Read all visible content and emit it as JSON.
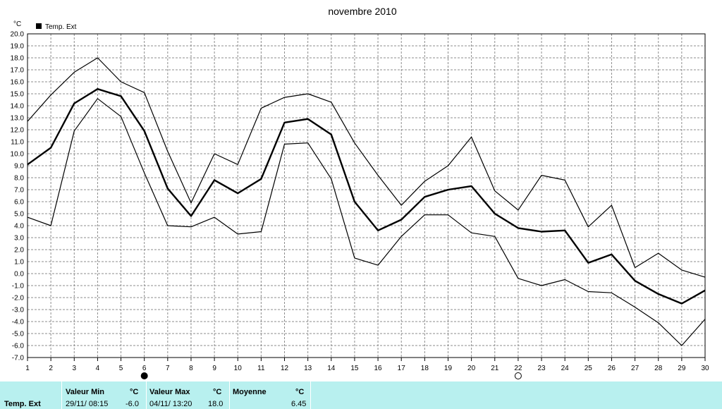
{
  "chart_data": {
    "type": "line",
    "title": "novembre 2010",
    "unit_label": "°C",
    "legend": "Temp. Ext",
    "x": [
      1,
      2,
      3,
      4,
      5,
      6,
      7,
      8,
      9,
      10,
      11,
      12,
      13,
      14,
      15,
      16,
      17,
      18,
      19,
      20,
      21,
      22,
      23,
      24,
      25,
      26,
      27,
      28,
      29,
      30
    ],
    "ylim": [
      -7.0,
      20.0
    ],
    "yticks": [
      "20.0",
      "19.0",
      "18.0",
      "17.0",
      "16.0",
      "15.0",
      "14.0",
      "13.0",
      "12.0",
      "11.0",
      "10.0",
      "9.0",
      "8.0",
      "7.0",
      "6.0",
      "5.0",
      "4.0",
      "3.0",
      "2.0",
      "1.0",
      "0.0",
      "-1.0",
      "-2.0",
      "-3.0",
      "-4.0",
      "-5.0",
      "-6.0",
      "-7.0"
    ],
    "grid": true,
    "series": [
      {
        "role": "max",
        "values": [
          12.7,
          14.9,
          16.8,
          18.0,
          16.0,
          15.1,
          10.2,
          5.9,
          10.0,
          9.1,
          13.8,
          14.7,
          15.0,
          14.3,
          10.9,
          8.2,
          5.7,
          7.7,
          9.0,
          11.4,
          6.9,
          5.3,
          8.2,
          7.8,
          3.9,
          5.7,
          0.5,
          1.7,
          0.3,
          -0.3
        ]
      },
      {
        "role": "mean",
        "values": [
          9.1,
          10.5,
          14.2,
          15.4,
          14.8,
          11.9,
          7.1,
          4.8,
          7.8,
          6.7,
          7.9,
          12.6,
          12.9,
          11.6,
          6.0,
          3.6,
          4.5,
          6.4,
          7.0,
          7.3,
          5.0,
          3.8,
          3.5,
          3.6,
          0.9,
          1.6,
          -0.6,
          -1.7,
          -2.5,
          -1.4
        ]
      },
      {
        "role": "min",
        "values": [
          4.7,
          4.0,
          11.9,
          14.6,
          13.1,
          8.4,
          4.0,
          3.9,
          4.7,
          3.3,
          3.5,
          10.8,
          10.9,
          7.9,
          1.3,
          0.7,
          3.1,
          4.9,
          4.9,
          3.4,
          3.1,
          -0.4,
          -1.0,
          -0.5,
          -1.5,
          -1.6,
          -2.8,
          -4.1,
          -6.0,
          -3.8
        ]
      }
    ],
    "moon_markers": [
      {
        "day": 6,
        "phase": "new-moon-icon"
      },
      {
        "day": 22,
        "phase": "full-moon-icon"
      }
    ]
  },
  "footer": {
    "row_label": "Temp. Ext",
    "min_title": "Valeur Min",
    "min_unit": "°C",
    "min_when": "29/11/  08:15",
    "min_value": "-6.0",
    "max_title": "Valeur Max",
    "max_unit": "°C",
    "max_when": "04/11/  13:20",
    "max_value": "18.0",
    "avg_title": "Moyenne",
    "avg_unit": "°C",
    "avg_value": "6.45"
  }
}
